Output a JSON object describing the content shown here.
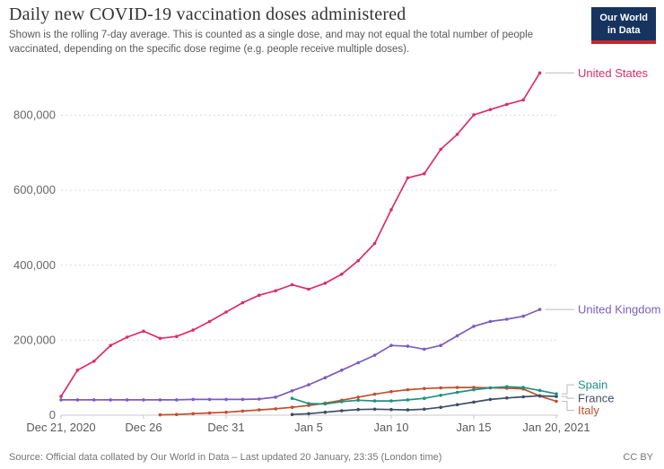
{
  "header": {
    "title": "Daily new COVID-19 vaccination doses administered",
    "subtitle": "Shown is the rolling 7-day average. This is counted as a single dose, and may not equal the total number of people vaccinated, depending on the specific dose regime (e.g. people receive multiple doses)."
  },
  "logo": {
    "line1": "Our World",
    "line2": "in Data"
  },
  "footer": {
    "source": "Source: Official data collated by Our World in Data – Last updated 20 January, 23:35 (London time)",
    "license": "CC BY"
  },
  "chart_data": {
    "type": "line",
    "title": "Daily new COVID-19 vaccination doses administered",
    "x_start": "Dec 21, 2020",
    "x_end": "Jan 20, 2021",
    "frequency": "daily",
    "grid": true,
    "legend_position": "right-end-labels",
    "x_axis": {
      "ticks": [
        {
          "day": 0,
          "label": "Dec 21, 2020"
        },
        {
          "day": 5,
          "label": "Dec 26"
        },
        {
          "day": 10,
          "label": "Dec 31"
        },
        {
          "day": 15,
          "label": "Jan 5"
        },
        {
          "day": 20,
          "label": "Jan 10"
        },
        {
          "day": 25,
          "label": "Jan 15"
        },
        {
          "day": 30,
          "label": "Jan 20, 2021"
        }
      ]
    },
    "y_axis": {
      "max": 800000,
      "ticks": [
        {
          "value": 0,
          "label": "0"
        },
        {
          "value": 200000,
          "label": "200,000"
        },
        {
          "value": 400000,
          "label": "400,000"
        },
        {
          "value": 600000,
          "label": "600,000"
        },
        {
          "value": 800000,
          "label": "800,000"
        }
      ]
    },
    "series": [
      {
        "name": "United States",
        "color": "#dc2e68",
        "label_dy": 0,
        "values": [
          50000,
          120000,
          144000,
          186000,
          208000,
          224000,
          205000,
          210000,
          227000,
          250000,
          275000,
          300000,
          320000,
          332000,
          348000,
          336000,
          352000,
          376000,
          412000,
          458000,
          548000,
          633000,
          644000,
          709000,
          749000,
          801000,
          815000,
          829000,
          841000,
          913000,
          null
        ]
      },
      {
        "name": "United Kingdom",
        "color": "#7b5dbc",
        "label_dy": 0,
        "values": [
          41000,
          41000,
          41000,
          41000,
          41000,
          41000,
          41000,
          41000,
          42000,
          42000,
          42000,
          42000,
          43000,
          48000,
          65000,
          81000,
          100000,
          120000,
          140000,
          160000,
          186000,
          184000,
          176000,
          186000,
          212000,
          237000,
          250000,
          256000,
          264000,
          282000,
          null
        ]
      },
      {
        "name": "Spain",
        "color": "#1f9180",
        "label_dy": -10,
        "values": [
          null,
          null,
          null,
          null,
          null,
          null,
          null,
          null,
          null,
          null,
          null,
          null,
          null,
          null,
          45000,
          31000,
          30000,
          36000,
          40000,
          38000,
          38000,
          41000,
          45000,
          53000,
          61000,
          68000,
          73000,
          76000,
          74000,
          66000,
          57000
        ]
      },
      {
        "name": "France",
        "color": "#3e4e66",
        "label_dy": 2,
        "values": [
          null,
          null,
          null,
          null,
          null,
          null,
          null,
          null,
          null,
          null,
          null,
          null,
          null,
          null,
          2000,
          4000,
          8000,
          12000,
          15000,
          16000,
          15000,
          14000,
          16000,
          21000,
          28000,
          35000,
          42000,
          46000,
          49000,
          52000,
          50000
        ]
      },
      {
        "name": "Italy",
        "color": "#c1502e",
        "label_dy": 10,
        "values": [
          null,
          null,
          null,
          null,
          null,
          null,
          1000,
          2000,
          4000,
          6000,
          8000,
          11000,
          14000,
          17000,
          21000,
          26000,
          32000,
          40000,
          48000,
          56000,
          63000,
          68000,
          71000,
          73000,
          74000,
          74000,
          73000,
          72000,
          70000,
          51000,
          37000
        ]
      }
    ]
  }
}
